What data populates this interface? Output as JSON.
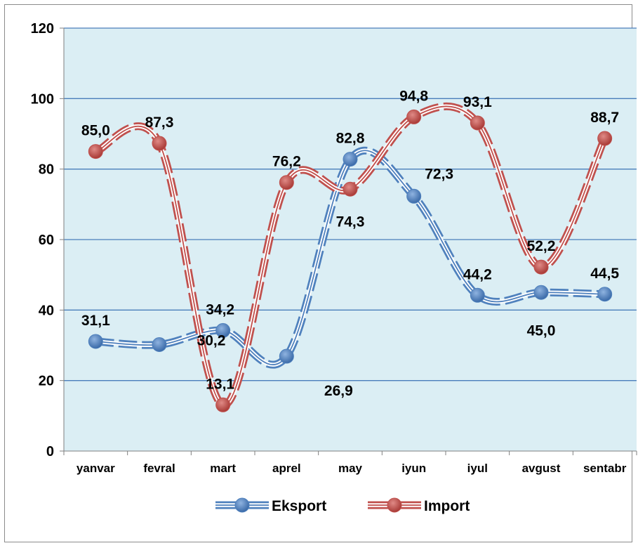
{
  "chart_data": {
    "type": "line",
    "categories": [
      "yanvar",
      "fevral",
      "mart",
      "aprel",
      "may",
      "iyun",
      "iyul",
      "avgust",
      "sentabr"
    ],
    "ylim": [
      0,
      120
    ],
    "yticks": [
      "0",
      "20",
      "40",
      "60",
      "80",
      "100",
      "120"
    ],
    "grid": true,
    "smooth": true,
    "legend_position": "bottom",
    "background_color": "#dbeef4",
    "series": [
      {
        "name": "Eksport",
        "values": [
          31.1,
          30.2,
          34.2,
          26.9,
          82.8,
          72.3,
          44.2,
          45.0,
          44.5
        ],
        "labels": [
          "31,1",
          "30,2",
          "34,2",
          "26,9",
          "82,8",
          "72,3",
          "44,2",
          "45,0",
          "44,5"
        ],
        "color": "#4f81bd"
      },
      {
        "name": "Import",
        "values": [
          85.0,
          87.3,
          13.1,
          76.2,
          74.3,
          94.8,
          93.1,
          52.2,
          88.7
        ],
        "labels": [
          "85,0",
          "87,3",
          "13,1",
          "76,2",
          "74,3",
          "94,8",
          "93,1",
          "52,2",
          "88,7"
        ],
        "color": "#c0504d"
      }
    ]
  }
}
